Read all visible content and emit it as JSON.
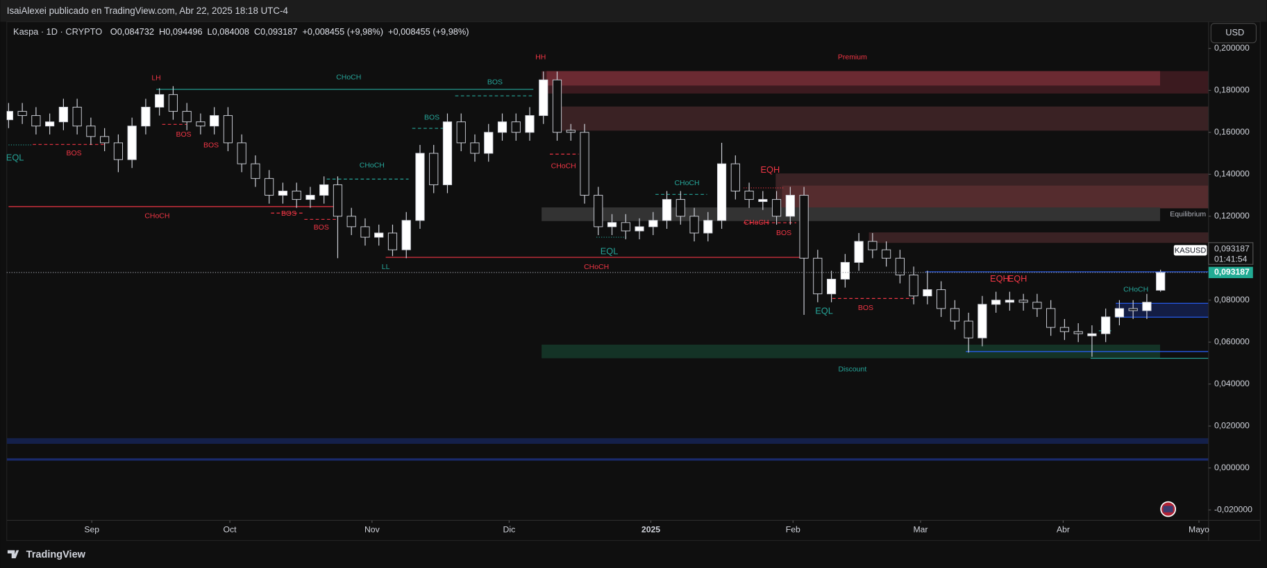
{
  "header": {
    "publisher": "IsaiAlexei publicado en TradingView.com, Abr 22, 2025 18:18 UTC-4"
  },
  "legend": {
    "symbol": "Kaspa · 1D · CRYPTO",
    "ohlc": [
      "O0,084732",
      "H0,094496",
      "L0,084008",
      "C0,093187",
      "+0,008455 (+9,98%)",
      "+0,008455 (+9,98%)"
    ]
  },
  "currency_button": "USD",
  "price_tag": {
    "symbol": "KASUSD",
    "price": "0,093187",
    "countdown": "01:41:54"
  },
  "footer": "TradingView",
  "chart_data": {
    "type": "candlestick",
    "colors": {
      "up": "#ffffff",
      "down": "#0f0f0f",
      "wick": "#d1d4dc"
    },
    "x": [
      0,
      3,
      6,
      9,
      12,
      15,
      18,
      21,
      24,
      27,
      30,
      33,
      36,
      39,
      42,
      45,
      48,
      51,
      54,
      57,
      60,
      63,
      66,
      69,
      72,
      75,
      78,
      81,
      84,
      87,
      90,
      93,
      96,
      99,
      102,
      105,
      108,
      111,
      114,
      117,
      120,
      123,
      126,
      129,
      132,
      135,
      138,
      141,
      144,
      147,
      150,
      153,
      156,
      159,
      162,
      165,
      168,
      171,
      174,
      177,
      180,
      183,
      186,
      189,
      192,
      195,
      198,
      201,
      204,
      207,
      210,
      213,
      216,
      219,
      222,
      225,
      228,
      231,
      234,
      237,
      240,
      243,
      246,
      249,
      252
    ],
    "open": [
      0.166,
      0.17,
      0.168,
      0.163,
      0.165,
      0.172,
      0.163,
      0.158,
      0.155,
      0.147,
      0.163,
      0.172,
      0.178,
      0.17,
      0.165,
      0.163,
      0.168,
      0.155,
      0.145,
      0.138,
      0.13,
      0.132,
      0.128,
      0.13,
      0.135,
      0.12,
      0.115,
      0.11,
      0.112,
      0.104,
      0.118,
      0.15,
      0.135,
      0.165,
      0.155,
      0.15,
      0.16,
      0.165,
      0.16,
      0.168,
      0.185,
      0.161,
      0.16,
      0.13,
      0.115,
      0.117,
      0.113,
      0.115,
      0.118,
      0.128,
      0.12,
      0.112,
      0.118,
      0.145,
      0.132,
      0.127,
      0.128,
      0.12,
      0.13,
      0.1,
      0.083,
      0.09,
      0.098,
      0.108,
      0.104,
      0.1,
      0.092,
      0.082,
      0.085,
      0.076,
      0.07,
      0.062,
      0.078,
      0.079,
      0.08,
      0.079,
      0.076,
      0.067,
      0.065,
      0.063,
      0.064,
      0.072,
      0.076,
      0.075,
      0.084732
    ],
    "high": [
      0.174,
      0.174,
      0.172,
      0.169,
      0.176,
      0.176,
      0.167,
      0.162,
      0.159,
      0.167,
      0.176,
      0.181,
      0.182,
      0.174,
      0.169,
      0.172,
      0.172,
      0.159,
      0.149,
      0.142,
      0.136,
      0.136,
      0.134,
      0.139,
      0.139,
      0.124,
      0.119,
      0.116,
      0.116,
      0.122,
      0.154,
      0.154,
      0.169,
      0.169,
      0.159,
      0.164,
      0.169,
      0.169,
      0.172,
      0.189,
      0.189,
      0.164,
      0.164,
      0.134,
      0.121,
      0.121,
      0.119,
      0.122,
      0.132,
      0.132,
      0.124,
      0.122,
      0.155,
      0.149,
      0.136,
      0.132,
      0.132,
      0.134,
      0.134,
      0.104,
      0.094,
      0.102,
      0.112,
      0.112,
      0.108,
      0.104,
      0.096,
      0.094,
      0.089,
      0.08,
      0.074,
      0.082,
      0.084,
      0.084,
      0.083,
      0.083,
      0.08,
      0.071,
      0.069,
      0.068,
      0.076,
      0.08,
      0.08,
      0.083,
      0.094496
    ],
    "low": [
      0.162,
      0.164,
      0.159,
      0.159,
      0.161,
      0.159,
      0.154,
      0.151,
      0.141,
      0.143,
      0.159,
      0.168,
      0.166,
      0.161,
      0.159,
      0.159,
      0.151,
      0.141,
      0.134,
      0.126,
      0.126,
      0.124,
      0.124,
      0.126,
      0.1,
      0.111,
      0.106,
      0.106,
      0.101,
      0.1,
      0.114,
      0.131,
      0.131,
      0.151,
      0.146,
      0.146,
      0.156,
      0.156,
      0.156,
      0.164,
      0.156,
      0.156,
      0.126,
      0.111,
      0.111,
      0.109,
      0.109,
      0.111,
      0.114,
      0.116,
      0.108,
      0.108,
      0.114,
      0.128,
      0.124,
      0.123,
      0.116,
      0.116,
      0.073,
      0.079,
      0.079,
      0.086,
      0.094,
      0.1,
      0.096,
      0.088,
      0.078,
      0.078,
      0.072,
      0.066,
      0.055,
      0.058,
      0.074,
      0.075,
      0.075,
      0.072,
      0.063,
      0.061,
      0.06,
      0.053,
      0.06,
      0.068,
      0.071,
      0.071,
      0.084008
    ],
    "close": [
      0.17,
      0.168,
      0.163,
      0.165,
      0.172,
      0.163,
      0.158,
      0.155,
      0.147,
      0.163,
      0.172,
      0.178,
      0.17,
      0.165,
      0.163,
      0.168,
      0.155,
      0.145,
      0.138,
      0.13,
      0.132,
      0.128,
      0.13,
      0.135,
      0.12,
      0.115,
      0.11,
      0.112,
      0.104,
      0.118,
      0.15,
      0.135,
      0.165,
      0.155,
      0.15,
      0.16,
      0.165,
      0.16,
      0.168,
      0.185,
      0.16,
      0.16,
      0.13,
      0.115,
      0.117,
      0.113,
      0.115,
      0.118,
      0.128,
      0.12,
      0.112,
      0.118,
      0.145,
      0.132,
      0.128,
      0.128,
      0.12,
      0.13,
      0.1,
      0.083,
      0.09,
      0.098,
      0.108,
      0.104,
      0.1,
      0.092,
      0.082,
      0.085,
      0.076,
      0.07,
      0.062,
      0.078,
      0.08,
      0.08,
      0.079,
      0.076,
      0.067,
      0.065,
      0.064,
      0.064,
      0.072,
      0.076,
      0.075,
      0.079,
      0.093187
    ],
    "xlim": [
      -0.4,
      262.5
    ],
    "ylim": [
      -0.025,
      0.2127
    ],
    "xticks": [
      {
        "value": 18.2,
        "label": "Sep"
      },
      {
        "value": 48.4,
        "label": "Oct"
      },
      {
        "value": 79.5,
        "label": "Nov"
      },
      {
        "value": 109.5,
        "label": "Dic"
      },
      {
        "value": 140.5,
        "label": "2025"
      },
      {
        "value": 171.6,
        "label": "Feb"
      },
      {
        "value": 199.5,
        "label": "Mar"
      },
      {
        "value": 230.7,
        "label": "Abr"
      },
      {
        "value": 260.4,
        "label": "Mayo"
      }
    ],
    "yticks": [
      {
        "value": 0.2,
        "label": "0,200000"
      },
      {
        "value": 0.18,
        "label": "0,180000"
      },
      {
        "value": 0.16,
        "label": "0,160000"
      },
      {
        "value": 0.14,
        "label": "0,140000"
      },
      {
        "value": 0.12,
        "label": "0,120000"
      },
      {
        "value": 0.1,
        "label": "0,100000"
      },
      {
        "value": 0.08,
        "label": "0,080000"
      },
      {
        "value": 0.06,
        "label": "0,060000"
      },
      {
        "value": 0.04,
        "label": "0,040000"
      },
      {
        "value": 0.02,
        "label": "0,020000"
      },
      {
        "value": 0,
        "label": "0,000000"
      },
      {
        "value": -0.02,
        "label": "-0,020000"
      }
    ],
    "grid": false,
    "zones": [
      {
        "x1": 116.6,
        "x2": 262.5,
        "y1": 0.1785,
        "y2": 0.1892,
        "color": "#3b1a1f"
      },
      {
        "x1": 117.7,
        "x2": 251.9,
        "y1": 0.1823,
        "y2": 0.1892,
        "color": "#6b2a32"
      },
      {
        "x1": 120.7,
        "x2": 262.5,
        "y1": 0.1608,
        "y2": 0.1723,
        "color": "#3a2224"
      },
      {
        "x1": 167.8,
        "x2": 262.5,
        "y1": 0.1238,
        "y2": 0.1404,
        "color": "#3a2224"
      },
      {
        "x1": 169.2,
        "x2": 262.5,
        "y1": 0.1238,
        "y2": 0.1346,
        "color": "#552c2e"
      },
      {
        "x1": 116.6,
        "x2": 251.9,
        "y1": 0.1177,
        "y2": 0.1242,
        "color": "#333333"
      },
      {
        "x1": 188.2,
        "x2": 262.5,
        "y1": 0.1073,
        "y2": 0.1123,
        "color": "#3a2224"
      },
      {
        "x1": 116.6,
        "x2": 251.9,
        "y1": 0.0523,
        "y2": 0.0588,
        "color": "#143326"
      },
      {
        "x1": 242.2,
        "x2": 262.5,
        "y1": 0.0719,
        "y2": 0.0785,
        "color": "#131d44"
      },
      {
        "x1": -0.4,
        "x2": 262.5,
        "y1": 0.0115,
        "y2": 0.0142,
        "color": "#14204a"
      },
      {
        "x1": -0.4,
        "x2": 262.5,
        "y1": 0.0035,
        "y2": 0.0046,
        "color": "#1a2a6c"
      }
    ],
    "lines": [
      {
        "x1": 32.3,
        "x2": 114.8,
        "y": 0.1805,
        "color": "#26a69a",
        "style": "solid"
      },
      {
        "x1": 97.7,
        "x2": 114.8,
        "y": 0.1774,
        "color": "#26a69a",
        "style": "dashed"
      },
      {
        "x1": 88.3,
        "x2": 96.3,
        "y": 0.1619,
        "color": "#26a69a",
        "style": "dashed"
      },
      {
        "x1": 5.3,
        "x2": 21.2,
        "y": 0.1542,
        "color": "#f23645",
        "style": "dashed"
      },
      {
        "x1": 0,
        "x2": 5.3,
        "y": 0.154,
        "color": "#26a69a",
        "style": "dotted"
      },
      {
        "x1": 33.6,
        "x2": 38.9,
        "y": 0.1638,
        "color": "#f23645",
        "style": "dashed"
      },
      {
        "x1": 69.6,
        "x2": 87.5,
        "y": 0.1377,
        "color": "#26a69a",
        "style": "dashed"
      },
      {
        "x1": 0,
        "x2": 72.1,
        "y": 0.1246,
        "color": "#f23645",
        "style": "solid"
      },
      {
        "x1": 57.4,
        "x2": 64.7,
        "y": 0.1215,
        "color": "#f23645",
        "style": "dashed"
      },
      {
        "x1": 64.7,
        "x2": 72.1,
        "y": 0.1185,
        "color": "#f23645",
        "style": "dashed"
      },
      {
        "x1": 82.5,
        "x2": 173.7,
        "y": 0.1004,
        "color": "#f23645",
        "style": "solid"
      },
      {
        "x1": 118.4,
        "x2": 124.7,
        "y": 0.1496,
        "color": "#f23645",
        "style": "dashed"
      },
      {
        "x1": 141.5,
        "x2": 152.8,
        "y": 0.1304,
        "color": "#26a69a",
        "style": "dashed"
      },
      {
        "x1": 160.8,
        "x2": 169.6,
        "y": 0.1335,
        "color": "#f23645",
        "style": "dotted"
      },
      {
        "x1": 128.6,
        "x2": 135.2,
        "y": 0.11,
        "color": "#26a69a",
        "style": "dotted"
      },
      {
        "x1": 160.8,
        "x2": 172.3,
        "y": 0.1169,
        "color": "#f23645",
        "style": "dashed"
      },
      {
        "x1": 180.2,
        "x2": 197.9,
        "y": 0.0808,
        "color": "#f23645",
        "style": "dashed"
      },
      {
        "x1": 238.5,
        "x2": 241.2,
        "y": 0.0654,
        "color": "#26a69a",
        "style": "dashed"
      },
      {
        "x1": 200.5,
        "x2": 262.5,
        "y": 0.0935,
        "color": "#2962ff",
        "style": "solid"
      },
      {
        "x1": 209.4,
        "x2": 262.5,
        "y": 0.0555,
        "color": "#2962ff",
        "style": "solid"
      },
      {
        "x1": 236.7,
        "x2": 262.5,
        "y": 0.0523,
        "color": "#26a69a",
        "style": "solid"
      },
      {
        "x1": 242.2,
        "x2": 262.5,
        "y": 0.0785,
        "color": "#2962ff",
        "style": "solid"
      },
      {
        "x1": 242.2,
        "x2": 262.5,
        "y": 0.0719,
        "color": "#2962ff",
        "style": "solid"
      }
    ],
    "annotations": [
      {
        "text": "LH",
        "x": 32.3,
        "y": 0.1858,
        "color": "#f23645"
      },
      {
        "text": "HH",
        "x": 116.4,
        "y": 0.1958,
        "color": "#f23645"
      },
      {
        "text": "CHoCH",
        "x": 74.4,
        "y": 0.1862,
        "color": "#26a69a"
      },
      {
        "text": "BOS",
        "x": 106.4,
        "y": 0.1838,
        "color": "#26a69a"
      },
      {
        "text": "BOS",
        "x": 92.6,
        "y": 0.1669,
        "color": "#26a69a"
      },
      {
        "text": "BOS",
        "x": 14.3,
        "y": 0.15,
        "color": "#f23645"
      },
      {
        "text": "EQL",
        "x": 1.4,
        "y": 0.1477,
        "color": "#26a69a"
      },
      {
        "text": "BOS",
        "x": 38.3,
        "y": 0.1588,
        "color": "#f23645"
      },
      {
        "text": "BOS",
        "x": 44.3,
        "y": 0.1538,
        "color": "#f23645"
      },
      {
        "text": "CHoCH",
        "x": 79.5,
        "y": 0.1442,
        "color": "#26a69a"
      },
      {
        "text": "CHoCH",
        "x": 32.5,
        "y": 0.12,
        "color": "#f23645"
      },
      {
        "text": "BOS",
        "x": 61.3,
        "y": 0.1212,
        "color": "#f23645"
      },
      {
        "text": "BOS",
        "x": 68.4,
        "y": 0.1146,
        "color": "#f23645"
      },
      {
        "text": "LL",
        "x": 82.5,
        "y": 0.0958,
        "color": "#26a69a"
      },
      {
        "text": "CHoCH",
        "x": 121.4,
        "y": 0.1438,
        "color": "#f23645"
      },
      {
        "text": "CHoCH",
        "x": 148.4,
        "y": 0.1358,
        "color": "#26a69a"
      },
      {
        "text": "EQH",
        "x": 166.6,
        "y": 0.1419,
        "color": "#f23645"
      },
      {
        "text": "CHoCH",
        "x": 163.6,
        "y": 0.1169,
        "color": "#f23645"
      },
      {
        "text": "BOS",
        "x": 169.6,
        "y": 0.1119,
        "color": "#f23645"
      },
      {
        "text": "EQL",
        "x": 131.4,
        "y": 0.1031,
        "color": "#26a69a"
      },
      {
        "text": "CHoCH",
        "x": 128.6,
        "y": 0.0958,
        "color": "#f23645"
      },
      {
        "text": "EQL",
        "x": 178.4,
        "y": 0.0746,
        "color": "#26a69a"
      },
      {
        "text": "BOS",
        "x": 187.5,
        "y": 0.0762,
        "color": "#f23645"
      },
      {
        "text": "EQH",
        "x": 216.8,
        "y": 0.09,
        "color": "#f23645"
      },
      {
        "text": "EQH",
        "x": 220.7,
        "y": 0.09,
        "color": "#f23645"
      },
      {
        "text": "CHoCH",
        "x": 246.6,
        "y": 0.085,
        "color": "#26a69a"
      },
      {
        "text": "Premium",
        "x": 184.6,
        "y": 0.1958,
        "color": "#f23645"
      },
      {
        "text": "Equilibrium",
        "x": 258,
        "y": 0.1208,
        "color": "#b2b5be"
      },
      {
        "text": "Discount",
        "x": 184.6,
        "y": 0.0469,
        "color": "#26a69a"
      }
    ]
  }
}
